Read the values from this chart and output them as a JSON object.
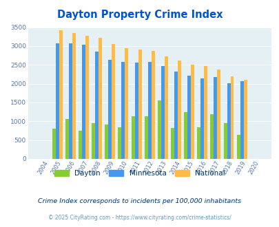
{
  "title": "Dayton Property Crime Index",
  "title_color": "#0055cc",
  "years": [
    "2004",
    "2005",
    "2006",
    "2007",
    "2008",
    "2009",
    "2010",
    "2011",
    "2012",
    "2013",
    "2014",
    "2015",
    "2016",
    "2017",
    "2018",
    "2019",
    "2020"
  ],
  "dayton": [
    0,
    800,
    1060,
    750,
    960,
    910,
    850,
    1130,
    1130,
    1560,
    820,
    1250,
    840,
    1180,
    960,
    640,
    0
  ],
  "minnesota": [
    0,
    3080,
    3080,
    3040,
    2850,
    2630,
    2570,
    2560,
    2570,
    2460,
    2320,
    2220,
    2140,
    2180,
    2010,
    2060,
    0
  ],
  "national": [
    0,
    3420,
    3340,
    3270,
    3210,
    3050,
    2950,
    2910,
    2870,
    2720,
    2620,
    2500,
    2470,
    2370,
    2200,
    2100,
    0
  ],
  "dayton_color": "#88cc33",
  "minnesota_color": "#4499ee",
  "national_color": "#ffbb44",
  "plot_bg": "#e5f0f5",
  "ylim": [
    0,
    3500
  ],
  "yticks": [
    0,
    500,
    1000,
    1500,
    2000,
    2500,
    3000,
    3500
  ],
  "subtitle": "Crime Index corresponds to incidents per 100,000 inhabitants",
  "subtitle_color": "#003366",
  "copyright": "© 2025 CityRating.com - https://www.cityrating.com/crime-statistics/",
  "copyright_color": "#6699bb",
  "legend_labels": [
    "Dayton",
    "Minnesota",
    "National"
  ],
  "bar_width": 0.26
}
